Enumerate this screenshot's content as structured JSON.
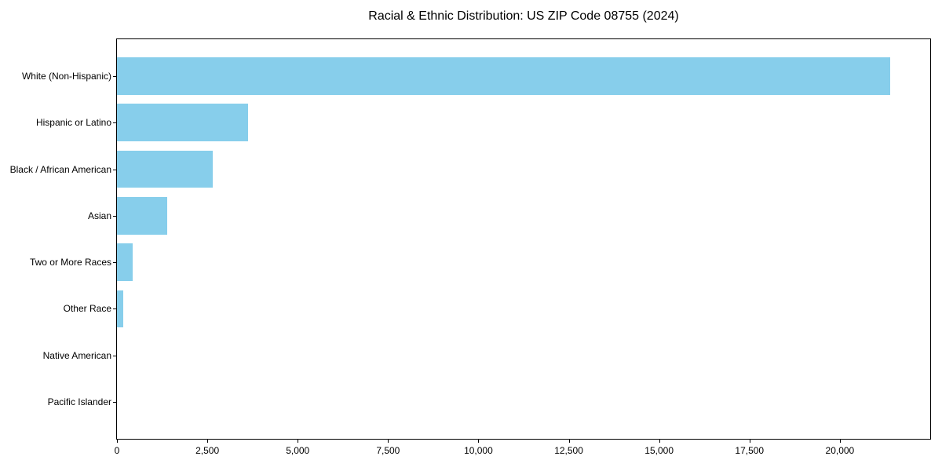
{
  "chart_data": {
    "type": "bar",
    "orientation": "horizontal",
    "title": "Racial & Ethnic Distribution: US ZIP Code 08755 (2024)",
    "categories": [
      "White (Non-Hispanic)",
      "Hispanic or Latino",
      "Black / African American",
      "Asian",
      "Two or More Races",
      "Other Race",
      "Native American",
      "Pacific Islander"
    ],
    "values": [
      21400,
      3620,
      2650,
      1400,
      440,
      175,
      0,
      0
    ],
    "xlabel": "",
    "ylabel": "",
    "xlim": [
      0,
      22500
    ],
    "xticks": [
      0,
      2500,
      5000,
      7500,
      10000,
      12500,
      15000,
      17500,
      20000
    ],
    "xtick_labels": [
      "0",
      "2,500",
      "5,000",
      "7,500",
      "10,000",
      "12,500",
      "15,000",
      "17,500",
      "20,000"
    ],
    "bar_color": "#87CEEB",
    "axis_color": "#000000",
    "background_color": "#ffffff",
    "grid": false,
    "legend_position": "none"
  }
}
